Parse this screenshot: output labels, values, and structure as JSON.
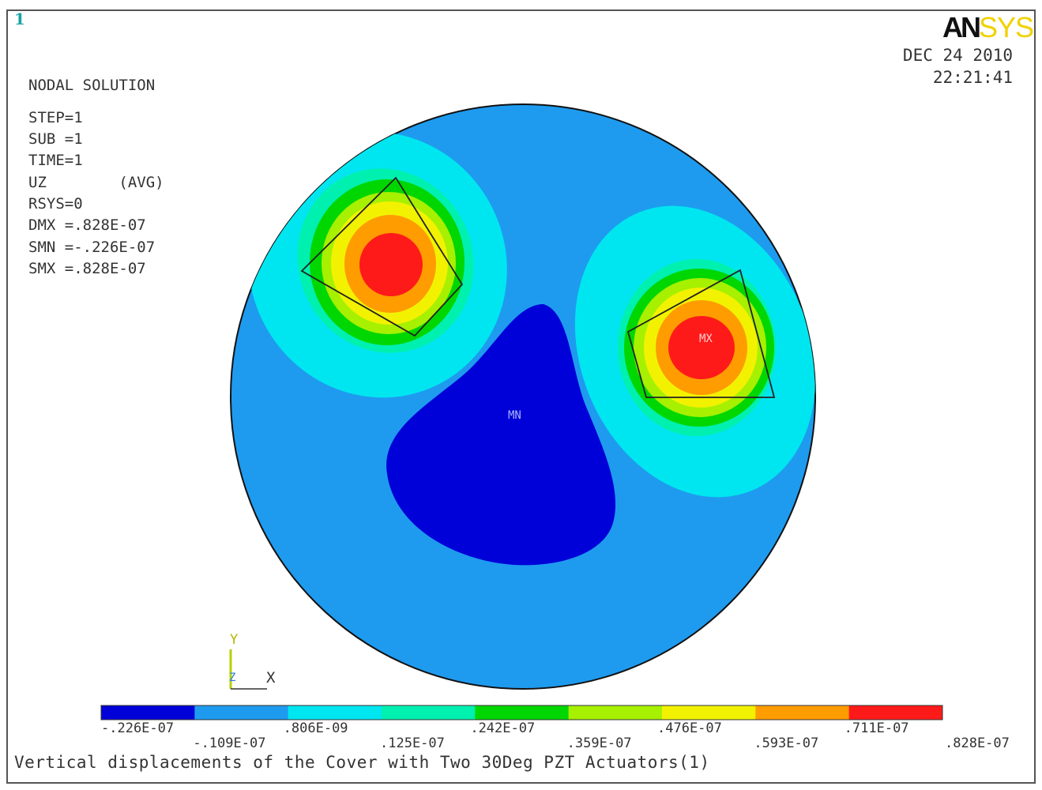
{
  "window_number": "1",
  "info": {
    "title": "NODAL SOLUTION",
    "lines": [
      "STEP=1",
      "SUB =1",
      "TIME=1",
      "UZ        (AVG)",
      "RSYS=0",
      "DMX =.828E-07",
      "SMN =-.226E-07",
      "SMX =.828E-07"
    ]
  },
  "logo": {
    "an": "AN",
    "sys": "SYS"
  },
  "date": {
    "day": "DEC 24 2010",
    "time": "22:21:41"
  },
  "markers": {
    "min": "MN",
    "max": "MX"
  },
  "triad": {
    "y": "Y",
    "x": "X",
    "z": "Z"
  },
  "legend": {
    "colors": [
      "#0000d8",
      "#1e9bef",
      "#00e6f0",
      "#00f0b0",
      "#00d600",
      "#a6f000",
      "#f2f200",
      "#ff9c00",
      "#ff1a1a"
    ],
    "labels_top": [
      "-.226E-07",
      ".806E-09",
      ".242E-07",
      ".476E-07",
      ".711E-07"
    ],
    "labels_bottom": [
      "-.109E-07",
      ".125E-07",
      ".359E-07",
      ".593E-07",
      ".828E-07"
    ]
  },
  "caption": "Vertical displacements of the Cover with Two 30Deg PZT Actuators(1)"
}
